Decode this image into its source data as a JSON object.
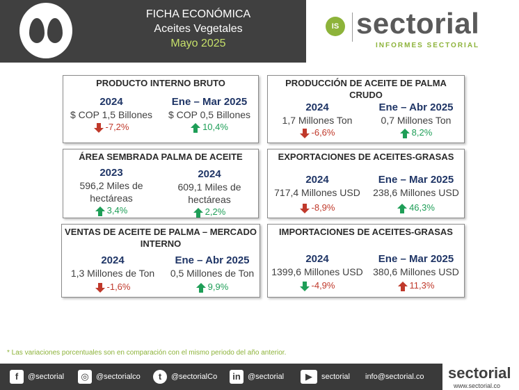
{
  "header": {
    "line1": "FICHA ECONÓMICA",
    "line2": "Aceites Vegetales",
    "line3": "Mayo 2025",
    "accent_color": "#c6e06a"
  },
  "brand": {
    "badge": "IS",
    "name": "sectorial",
    "subtitle": "INFORMES SECTORIAL"
  },
  "cards": {
    "pib": {
      "title": "PRODUCTO INTERNO BRUTO",
      "left": {
        "period": "2024",
        "value": "$ COP 1,5 Billones",
        "change": "-7,2%",
        "direction": "down"
      },
      "right": {
        "period": "Ene – Mar 2025",
        "value": "$ COP 0,5 Billones",
        "change": "10,4%",
        "direction": "up"
      }
    },
    "produccion": {
      "title_line1": "PRODUCCIÓN DE ACEITE DE PALMA",
      "title_line2": "CRUDO",
      "left": {
        "period": "2024",
        "value": "1,7 Millones Ton",
        "change": "-6,6%",
        "direction": "down"
      },
      "right": {
        "period": "Ene – Abr 2025",
        "value": "0,7 Millones Ton",
        "change": "8,2%",
        "direction": "up"
      }
    },
    "area": {
      "title": "ÁREA SEMBRADA PALMA DE ACEITE",
      "left": {
        "period": "2023",
        "value_line1": "596,2 Miles de",
        "value_line2": "hectáreas",
        "change": "3,4%",
        "direction": "up"
      },
      "right": {
        "period": "2024",
        "value_line1": "609,1 Miles de",
        "value_line2": "hectáreas",
        "change": "2,2%",
        "direction": "up"
      }
    },
    "exportaciones": {
      "title": "EXPORTACIONES DE ACEITES-GRASAS",
      "left": {
        "period": "2024",
        "value": "717,4 Millones USD",
        "change": "-8,9%",
        "direction": "down"
      },
      "right": {
        "period": "Ene – Mar 2025",
        "value": "238,6 Millones USD",
        "change": "46,3%",
        "direction": "up"
      }
    },
    "ventas": {
      "title_line1": "VENTAS DE ACEITE DE PALMA – MERCADO",
      "title_line2": "INTERNO",
      "left": {
        "period": "2024",
        "value": "1,3 Millones de Ton",
        "change": "-1,6%",
        "direction": "down"
      },
      "right": {
        "period": "Ene – Abr 2025",
        "value": "0,5 Millones de Ton",
        "change": "9,9%",
        "direction": "up"
      }
    },
    "importaciones": {
      "title": "IMPORTACIONES DE ACEITES-GRASAS",
      "left": {
        "period": "2024",
        "value": "1399,6 Millones USD",
        "change": "-4,9%",
        "direction": "down"
      },
      "right": {
        "period": "Ene – Mar 2025",
        "value": "380,6 Millones USD",
        "change": "11,3%",
        "direction": "up"
      }
    }
  },
  "footnote": "* Las variaciones porcentuales son en comparación con el mismo periodo del año anterior.",
  "footer": {
    "facebook": "@sectorial",
    "instagram": "@sectorialco",
    "twitter": "@sectorialCo",
    "linkedin": "@sectorial",
    "youtube": "sectorial",
    "email": "info@sectorial.co",
    "brand_name": "sectorial",
    "brand_url": "www.sectorial.co"
  },
  "colors": {
    "negative": "#c0392b",
    "positive": "#1e9e57",
    "period": "#1f3566",
    "header_bg": "#404040",
    "brand_green": "#8db33a"
  }
}
